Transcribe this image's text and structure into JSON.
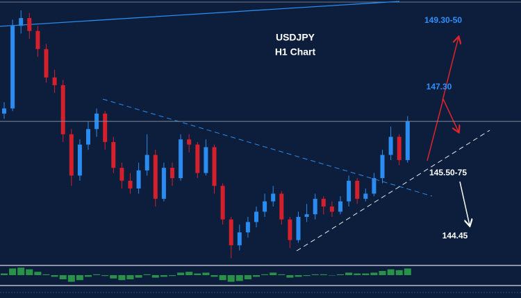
{
  "chart_data": {
    "type": "candlestick",
    "title": "USDJPY",
    "subtitle": "H1 Chart",
    "ylim": [
      144.1,
      149.2
    ],
    "up_color": "#2a8cf0",
    "down_color": "#d4202c",
    "series": [
      {
        "open": [
          147.0,
          147.1,
          148.7,
          148.85,
          148.6,
          148.25,
          147.7,
          147.55,
          146.6,
          145.8,
          146.4,
          146.7,
          147.0,
          146.45,
          145.95,
          145.7,
          145.55,
          145.9,
          146.2,
          145.35,
          145.95,
          145.75,
          146.5,
          146.4,
          145.85,
          146.35,
          145.6,
          144.95,
          144.45,
          144.7,
          144.9,
          145.1,
          145.3,
          145.45,
          144.95,
          144.55,
          145.0,
          145.05,
          145.35,
          145.2,
          145.1,
          145.3,
          145.7,
          145.35,
          145.45,
          145.75,
          146.2,
          146.55,
          146.1
        ],
        "high": [
          147.22,
          148.82,
          149.0,
          148.95,
          148.7,
          148.35,
          147.85,
          147.65,
          146.7,
          146.5,
          146.85,
          147.1,
          147.05,
          146.55,
          146.05,
          145.85,
          146.05,
          146.6,
          146.3,
          146.05,
          146.05,
          146.6,
          146.6,
          146.45,
          146.5,
          146.4,
          145.65,
          145.0,
          144.85,
          145.0,
          145.2,
          145.45,
          145.6,
          145.5,
          145.0,
          145.1,
          145.25,
          145.45,
          145.4,
          145.3,
          145.4,
          145.8,
          145.75,
          145.55,
          145.85,
          146.3,
          146.75,
          146.6,
          146.95
        ],
        "low": [
          146.9,
          147.05,
          148.55,
          148.45,
          148.1,
          147.6,
          147.4,
          146.45,
          145.6,
          145.7,
          146.3,
          146.55,
          146.3,
          145.85,
          145.55,
          145.45,
          145.45,
          145.8,
          145.2,
          145.3,
          145.6,
          145.7,
          146.25,
          145.75,
          145.8,
          145.45,
          144.85,
          144.2,
          144.35,
          144.6,
          144.8,
          145.0,
          145.2,
          144.85,
          144.4,
          144.5,
          144.9,
          144.95,
          145.05,
          145.0,
          145.05,
          145.2,
          145.25,
          145.3,
          145.4,
          145.65,
          146.1,
          146.0,
          146.05
        ],
        "close": [
          147.1,
          148.7,
          148.85,
          148.6,
          148.25,
          147.7,
          147.55,
          146.6,
          145.8,
          146.4,
          146.7,
          147.0,
          146.45,
          145.95,
          145.7,
          145.55,
          145.9,
          146.2,
          145.35,
          145.95,
          145.75,
          146.5,
          146.4,
          145.85,
          146.35,
          145.6,
          144.95,
          144.45,
          144.7,
          144.9,
          145.1,
          145.3,
          145.45,
          144.95,
          144.55,
          145.0,
          145.05,
          145.35,
          145.2,
          145.1,
          145.3,
          145.7,
          145.35,
          145.45,
          145.75,
          146.2,
          146.55,
          146.1,
          146.85
        ]
      }
    ],
    "indicator": {
      "color": "#2ea84a",
      "ylim": [
        -1,
        1
      ],
      "values": [
        0.2,
        0.8,
        0.9,
        0.7,
        0.4,
        0.1,
        -0.2,
        -0.5,
        -0.8,
        -0.6,
        -0.2,
        0.1,
        -0.1,
        -0.4,
        -0.6,
        -0.5,
        -0.3,
        0.1,
        -0.3,
        -0.2,
        -0.1,
        0.3,
        0.4,
        0.2,
        0.3,
        -0.2,
        -0.6,
        -0.8,
        -0.7,
        -0.5,
        -0.2,
        0.1,
        0.3,
        0.1,
        -0.3,
        -0.2,
        -0.1,
        0.1,
        0.1,
        0.0,
        0.1,
        0.3,
        0.2,
        0.2,
        0.3,
        0.5,
        0.7,
        0.6,
        0.8
      ]
    },
    "annotations": [
      {
        "text": "149.30-50",
        "color": "#2f8fff"
      },
      {
        "text": "147.30",
        "color": "#2f8fff"
      },
      {
        "text": "145.50-75",
        "color": "#ffffff"
      },
      {
        "text": "144.45",
        "color": "#ffffff"
      }
    ]
  }
}
